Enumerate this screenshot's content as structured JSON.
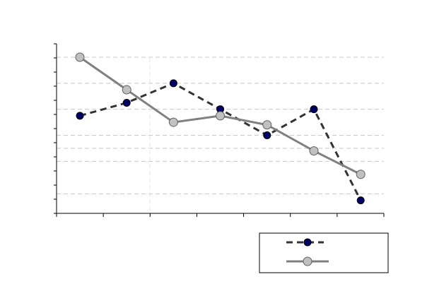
{
  "chart_data": {
    "type": "line",
    "x": [
      1,
      2,
      3,
      4,
      5,
      6,
      7
    ],
    "ylim": [
      0,
      12
    ],
    "grid_y_values": [
      1.5,
      4,
      5,
      6,
      8,
      10,
      12
    ],
    "y_tick_count": 12,
    "x_tick_count": 7,
    "legend_placement": "bottom-right",
    "series": [
      {
        "values": [
          7.5,
          8.5,
          10,
          8,
          6,
          8,
          1
        ],
        "color": "#000066",
        "line_color": "#333333",
        "style": "dashed",
        "marker": "filled-circle"
      },
      {
        "values": [
          12,
          9.5,
          7,
          7.5,
          6.8,
          4.8,
          3
        ],
        "color": "#c0c0c0",
        "line_color": "#808080",
        "style": "solid",
        "marker": "open-circle"
      }
    ]
  }
}
